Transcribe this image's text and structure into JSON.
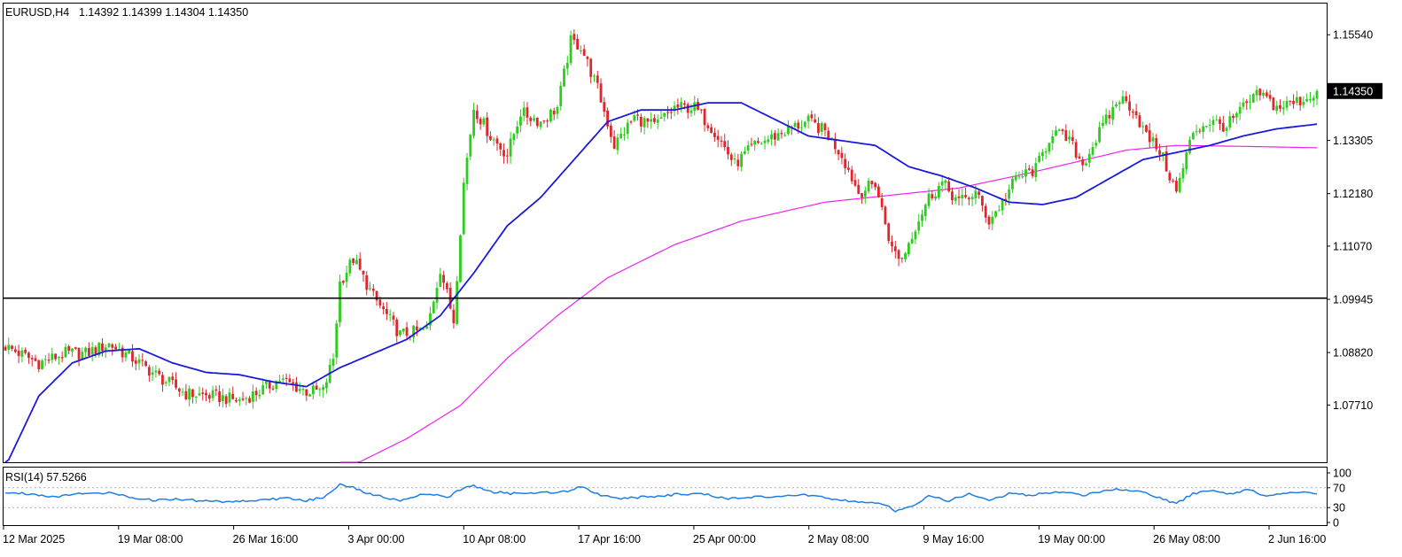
{
  "header": {
    "symbol_tf": "EURUSD,H4",
    "ohlc": "1.14392 1.14399 1.14304 1.14350"
  },
  "rsi_header": {
    "label": "RSI(14) 57.5266"
  },
  "colors": {
    "bull": "#2ecc1f",
    "bear": "#e0252c",
    "ma_fast": "#1a1adb",
    "ma_slow": "#ee22ee",
    "rsi": "#1e7ee8",
    "hline": "#000000"
  },
  "chart_data": [
    {
      "type": "candlestick",
      "title": "EURUSD,H4",
      "ylim": [
        1.065,
        1.162
      ],
      "yticks": [
        "1.15540",
        "1.14350",
        "1.13305",
        "1.12180",
        "1.11070",
        "1.09945",
        "1.08820",
        "1.07710"
      ],
      "current_price": "1.14350",
      "horizontal_line": 1.0997,
      "xticks": [
        "12 Mar 2025",
        "19 Mar 08:00",
        "26 Mar 16:00",
        "3 Apr 00:00",
        "10 Apr 08:00",
        "17 Apr 16:00",
        "25 Apr 00:00",
        "2 May 08:00",
        "9 May 16:00",
        "19 May 00:00",
        "26 May 08:00",
        "2 Jun 16:00"
      ],
      "close_anchors": [
        [
          0,
          1.0895
        ],
        [
          10,
          1.086
        ],
        [
          18,
          1.088
        ],
        [
          24,
          1.088
        ],
        [
          31,
          1.09
        ],
        [
          38,
          1.087
        ],
        [
          46,
          1.083
        ],
        [
          54,
          1.0795
        ],
        [
          62,
          1.079
        ],
        [
          70,
          1.078
        ],
        [
          76,
          1.08
        ],
        [
          82,
          1.0825
        ],
        [
          90,
          1.08
        ],
        [
          95,
          1.08
        ],
        [
          98,
          1.087
        ],
        [
          100,
          1.103
        ],
        [
          104,
          1.108
        ],
        [
          110,
          1.1
        ],
        [
          118,
          1.092
        ],
        [
          126,
          1.093
        ],
        [
          130,
          1.106
        ],
        [
          134,
          1.095
        ],
        [
          137,
          1.124
        ],
        [
          140,
          1.14
        ],
        [
          145,
          1.134
        ],
        [
          150,
          1.13
        ],
        [
          154,
          1.139
        ],
        [
          160,
          1.137
        ],
        [
          165,
          1.14
        ],
        [
          169,
          1.154
        ],
        [
          172,
          1.153
        ],
        [
          177,
          1.144
        ],
        [
          182,
          1.132
        ],
        [
          188,
          1.138
        ],
        [
          194,
          1.136
        ],
        [
          200,
          1.14
        ],
        [
          206,
          1.14
        ],
        [
          212,
          1.135
        ],
        [
          218,
          1.128
        ],
        [
          224,
          1.132
        ],
        [
          230,
          1.134
        ],
        [
          236,
          1.136
        ],
        [
          240,
          1.137
        ],
        [
          245,
          1.135
        ],
        [
          250,
          1.13
        ],
        [
          255,
          1.122
        ],
        [
          260,
          1.124
        ],
        [
          265,
          1.11
        ],
        [
          268,
          1.108
        ],
        [
          272,
          1.115
        ],
        [
          276,
          1.121
        ],
        [
          280,
          1.124
        ],
        [
          285,
          1.12
        ],
        [
          290,
          1.122
        ],
        [
          294,
          1.116
        ],
        [
          298,
          1.12
        ],
        [
          302,
          1.125
        ],
        [
          308,
          1.127
        ],
        [
          313,
          1.135
        ],
        [
          318,
          1.133
        ],
        [
          322,
          1.128
        ],
        [
          328,
          1.136
        ],
        [
          333,
          1.142
        ],
        [
          337,
          1.14
        ],
        [
          341,
          1.134
        ],
        [
          345,
          1.131
        ],
        [
          350,
          1.122
        ],
        [
          355,
          1.135
        ],
        [
          360,
          1.137
        ],
        [
          365,
          1.136
        ],
        [
          370,
          1.14
        ],
        [
          375,
          1.143
        ],
        [
          380,
          1.14
        ],
        [
          385,
          1.141
        ],
        [
          389,
          1.142
        ],
        [
          392,
          1.1435
        ]
      ],
      "ma_fast_anchors": [
        [
          0,
          1.064
        ],
        [
          10,
          1.079
        ],
        [
          20,
          1.086
        ],
        [
          30,
          1.0885
        ],
        [
          40,
          1.089
        ],
        [
          50,
          1.086
        ],
        [
          60,
          1.084
        ],
        [
          70,
          1.0835
        ],
        [
          80,
          1.082
        ],
        [
          90,
          1.081
        ],
        [
          100,
          1.085
        ],
        [
          110,
          1.088
        ],
        [
          120,
          1.091
        ],
        [
          130,
          1.096
        ],
        [
          140,
          1.105
        ],
        [
          150,
          1.115
        ],
        [
          160,
          1.121
        ],
        [
          170,
          1.129
        ],
        [
          180,
          1.137
        ],
        [
          190,
          1.1395
        ],
        [
          200,
          1.1395
        ],
        [
          210,
          1.141
        ],
        [
          220,
          1.141
        ],
        [
          230,
          1.1375
        ],
        [
          240,
          1.134
        ],
        [
          250,
          1.133
        ],
        [
          260,
          1.132
        ],
        [
          270,
          1.1275
        ],
        [
          280,
          1.1255
        ],
        [
          290,
          1.123
        ],
        [
          300,
          1.12
        ],
        [
          310,
          1.1195
        ],
        [
          320,
          1.121
        ],
        [
          330,
          1.125
        ],
        [
          340,
          1.129
        ],
        [
          350,
          1.1305
        ],
        [
          360,
          1.132
        ],
        [
          370,
          1.134
        ],
        [
          380,
          1.1355
        ],
        [
          392,
          1.1365
        ]
      ],
      "ma_slow_anchors": [
        [
          100,
          1.063
        ],
        [
          120,
          1.07
        ],
        [
          136,
          1.077
        ],
        [
          150,
          1.087
        ],
        [
          165,
          1.096
        ],
        [
          180,
          1.104
        ],
        [
          200,
          1.111
        ],
        [
          220,
          1.116
        ],
        [
          245,
          1.12
        ],
        [
          265,
          1.1215
        ],
        [
          285,
          1.123
        ],
        [
          305,
          1.126
        ],
        [
          320,
          1.1285
        ],
        [
          335,
          1.131
        ],
        [
          350,
          1.132
        ],
        [
          370,
          1.1318
        ],
        [
          392,
          1.1315
        ]
      ],
      "series_count": 393
    },
    {
      "type": "line",
      "title": "RSI(14) 57.5266",
      "ylim": [
        0,
        100
      ],
      "yticks": [
        "100",
        "70",
        "30",
        "0"
      ],
      "levels": [
        70,
        30
      ],
      "value": 57.5266,
      "anchors": [
        [
          0,
          60
        ],
        [
          8,
          58
        ],
        [
          14,
          52
        ],
        [
          20,
          56
        ],
        [
          26,
          61
        ],
        [
          31,
          59
        ],
        [
          36,
          53
        ],
        [
          44,
          45
        ],
        [
          52,
          47
        ],
        [
          60,
          43
        ],
        [
          68,
          42
        ],
        [
          76,
          45
        ],
        [
          84,
          49
        ],
        [
          90,
          44
        ],
        [
          95,
          50
        ],
        [
          100,
          78
        ],
        [
          104,
          70
        ],
        [
          110,
          55
        ],
        [
          118,
          45
        ],
        [
          126,
          58
        ],
        [
          132,
          50
        ],
        [
          137,
          70
        ],
        [
          140,
          74
        ],
        [
          145,
          62
        ],
        [
          152,
          58
        ],
        [
          160,
          60
        ],
        [
          168,
          63
        ],
        [
          172,
          74
        ],
        [
          178,
          55
        ],
        [
          185,
          48
        ],
        [
          192,
          52
        ],
        [
          200,
          56
        ],
        [
          208,
          58
        ],
        [
          215,
          48
        ],
        [
          222,
          52
        ],
        [
          230,
          50
        ],
        [
          238,
          56
        ],
        [
          244,
          52
        ],
        [
          250,
          45
        ],
        [
          256,
          40
        ],
        [
          262,
          38
        ],
        [
          266,
          24
        ],
        [
          270,
          30
        ],
        [
          276,
          52
        ],
        [
          282,
          44
        ],
        [
          288,
          58
        ],
        [
          294,
          44
        ],
        [
          300,
          58
        ],
        [
          306,
          55
        ],
        [
          312,
          60
        ],
        [
          318,
          62
        ],
        [
          322,
          54
        ],
        [
          328,
          62
        ],
        [
          333,
          68
        ],
        [
          338,
          63
        ],
        [
          344,
          52
        ],
        [
          350,
          38
        ],
        [
          355,
          58
        ],
        [
          360,
          63
        ],
        [
          366,
          58
        ],
        [
          372,
          66
        ],
        [
          376,
          55
        ],
        [
          382,
          58
        ],
        [
          388,
          62
        ],
        [
          392,
          57.5
        ]
      ]
    }
  ]
}
